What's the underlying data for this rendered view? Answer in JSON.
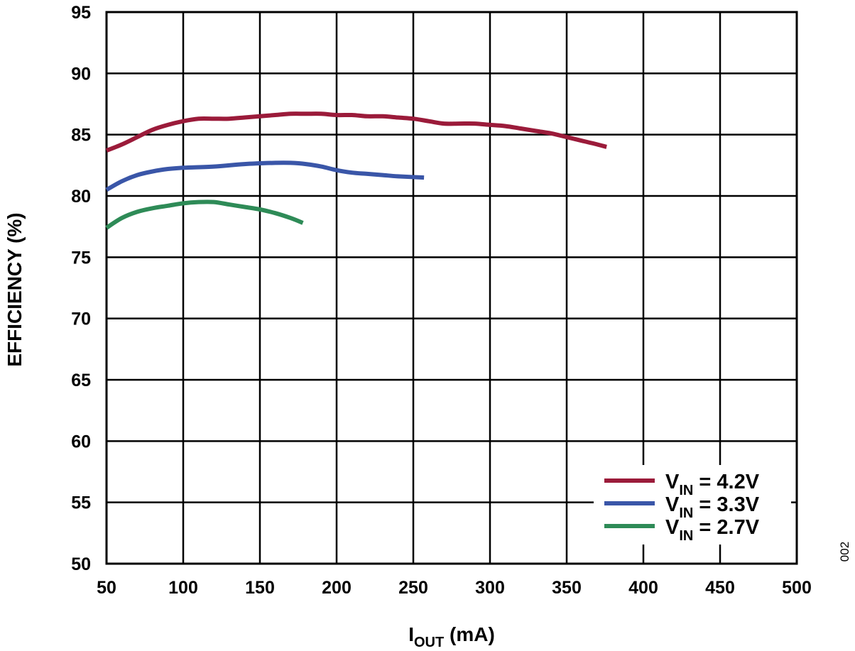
{
  "chart_data": {
    "type": "line",
    "xlabel": {
      "main": "I",
      "sub": "OUT",
      "suffix": " (mA)"
    },
    "ylabel": "EFFICIENCY (%)",
    "xlim": [
      50,
      500
    ],
    "ylim": [
      50,
      95
    ],
    "x_ticks": [
      50,
      100,
      150,
      200,
      250,
      300,
      350,
      400,
      450,
      500
    ],
    "x_tick_labels": [
      "50",
      "100",
      "150",
      "200",
      "250",
      "300",
      "350",
      "400",
      "450",
      "500"
    ],
    "y_ticks": [
      50,
      55,
      60,
      65,
      70,
      75,
      80,
      85,
      90,
      95
    ],
    "y_tick_labels": [
      "50",
      "55",
      "60",
      "65",
      "70",
      "75",
      "80",
      "85",
      "90",
      "95"
    ],
    "grid": true,
    "legend_position": "bottom-right",
    "figure_id": "002",
    "series": [
      {
        "name": "VIN = 4.2V",
        "label_main": "V",
        "label_sub": "IN",
        "label_rest": " = 4.2V",
        "color": "#9b1b3a",
        "x": [
          50,
          60,
          70,
          80,
          90,
          100,
          110,
          120,
          130,
          140,
          150,
          160,
          170,
          180,
          190,
          200,
          210,
          220,
          230,
          240,
          250,
          260,
          270,
          280,
          290,
          300,
          310,
          320,
          330,
          340,
          350,
          360,
          370,
          376
        ],
        "y": [
          83.7,
          84.2,
          84.8,
          85.4,
          85.8,
          86.1,
          86.3,
          86.3,
          86.3,
          86.4,
          86.5,
          86.6,
          86.7,
          86.7,
          86.7,
          86.6,
          86.6,
          86.5,
          86.5,
          86.4,
          86.3,
          86.1,
          85.9,
          85.9,
          85.9,
          85.8,
          85.7,
          85.5,
          85.3,
          85.1,
          84.8,
          84.5,
          84.2,
          84.0
        ]
      },
      {
        "name": "VIN = 3.3V",
        "label_main": "V",
        "label_sub": "IN",
        "label_rest": " = 3.3V",
        "color": "#3a56a8",
        "x": [
          50,
          60,
          70,
          80,
          90,
          100,
          120,
          140,
          160,
          170,
          180,
          190,
          200,
          210,
          220,
          230,
          240,
          257
        ],
        "y": [
          80.5,
          81.2,
          81.7,
          82.0,
          82.2,
          82.3,
          82.4,
          82.6,
          82.7,
          82.7,
          82.6,
          82.4,
          82.1,
          81.9,
          81.8,
          81.7,
          81.6,
          81.5
        ]
      },
      {
        "name": "VIN = 2.7V",
        "label_main": "V",
        "label_sub": "IN",
        "label_rest": " = 2.7V",
        "color": "#2e8b57",
        "x": [
          50,
          60,
          70,
          80,
          90,
          100,
          110,
          120,
          130,
          140,
          150,
          160,
          170,
          178
        ],
        "y": [
          77.4,
          78.2,
          78.7,
          79.0,
          79.2,
          79.4,
          79.5,
          79.5,
          79.3,
          79.1,
          78.9,
          78.6,
          78.2,
          77.8
        ]
      }
    ]
  }
}
